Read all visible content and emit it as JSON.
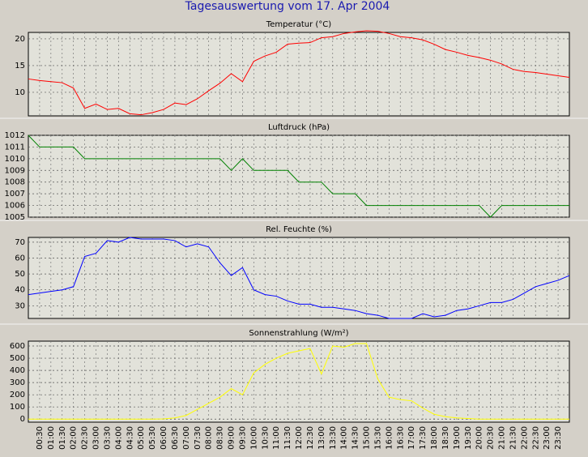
{
  "title": "Tagesauswertung vom 17. Apr 2004",
  "chart_data": [
    {
      "type": "line",
      "title": "Temperatur (°C)",
      "ylim": [
        5.6,
        21.2
      ],
      "yticks": [
        10,
        15,
        20
      ],
      "grid": true,
      "series": [
        {
          "name": null,
          "color": "#ff0000",
          "values": [
            12.5,
            12.2,
            12.0,
            11.8,
            10.8,
            7.0,
            7.8,
            6.8,
            7.0,
            6.0,
            5.8,
            6.2,
            6.8,
            8.0,
            7.7,
            8.8,
            10.3,
            11.7,
            13.5,
            12.0,
            15.8,
            16.8,
            17.5,
            19.0,
            19.2,
            19.3,
            20.2,
            20.4,
            21.0,
            21.3,
            21.5,
            21.4,
            21.0,
            20.4,
            20.2,
            19.8,
            19.0,
            18.0,
            17.5,
            16.9,
            16.5,
            16.0,
            15.3,
            14.3,
            13.9,
            13.7,
            13.4,
            13.1,
            12.8
          ]
        }
      ]
    },
    {
      "type": "line",
      "title": "Luftdruck (hPa)",
      "ylim": [
        1005,
        1012
      ],
      "yticks": [
        1005,
        1006,
        1007,
        1008,
        1009,
        1010,
        1011,
        1012
      ],
      "grid": true,
      "series": [
        {
          "name": null,
          "color": "#008000",
          "values": [
            1012,
            1011,
            1011,
            1011,
            1011,
            1010,
            1010,
            1010,
            1010,
            1010,
            1010,
            1010,
            1010,
            1010,
            1010,
            1010,
            1010,
            1010,
            1009,
            1010,
            1009,
            1009,
            1009,
            1009,
            1008,
            1008,
            1008,
            1007,
            1007,
            1007,
            1006,
            1006,
            1006,
            1006,
            1006,
            1006,
            1006,
            1006,
            1006,
            1006,
            1006,
            1005,
            1006,
            1006,
            1006,
            1006,
            1006,
            1006,
            1006
          ]
        }
      ]
    },
    {
      "type": "line",
      "title": "Rel. Feuchte (%)",
      "ylim": [
        22,
        73
      ],
      "yticks": [
        30,
        40,
        50,
        60,
        70
      ],
      "grid": true,
      "series": [
        {
          "name": null,
          "color": "#0000ff",
          "values": [
            37,
            38,
            39,
            40,
            42,
            61,
            63,
            71,
            70,
            73,
            72,
            72,
            72,
            71,
            67,
            69,
            67,
            57,
            49,
            54,
            40,
            37,
            36,
            33,
            31,
            31,
            29,
            29,
            28,
            27,
            25,
            24,
            22,
            22,
            22,
            25,
            23,
            24,
            27,
            28,
            30,
            32,
            32,
            34,
            38,
            42,
            44,
            46,
            49
          ]
        }
      ]
    },
    {
      "type": "line",
      "title": "Sonnenstrahlung (W/m²)",
      "ylim": [
        -25,
        640
      ],
      "yticks": [
        0,
        100,
        200,
        300,
        400,
        500,
        600
      ],
      "grid": true,
      "categories": [
        null,
        "00:30",
        "01:00",
        "01:30",
        "02:00",
        "02:30",
        "03:00",
        "03:30",
        "04:00",
        "04:30",
        "05:00",
        "05:30",
        "06:00",
        "06:30",
        "07:00",
        "07:30",
        "08:00",
        "08:30",
        "09:00",
        "09:30",
        "10:00",
        "10:30",
        "11:00",
        "11:30",
        "12:00",
        "12:30",
        "13:00",
        "13:30",
        "14:00",
        "14:30",
        "15:00",
        "15:30",
        "16:00",
        "16:30",
        "17:00",
        "17:30",
        "18:00",
        "18:30",
        "19:00",
        "19:30",
        "20:00",
        "20:30",
        "21:00",
        "21:30",
        "22:00",
        "22:30",
        "23:00",
        "23:30",
        null
      ],
      "series": [
        {
          "name": null,
          "color": "#ffff00",
          "values": [
            0,
            0,
            0,
            0,
            0,
            0,
            0,
            0,
            0,
            0,
            0,
            0,
            2,
            10,
            30,
            80,
            130,
            180,
            250,
            200,
            380,
            450,
            500,
            540,
            560,
            580,
            370,
            600,
            590,
            620,
            620,
            330,
            180,
            160,
            150,
            90,
            40,
            20,
            10,
            5,
            0,
            0,
            0,
            0,
            0,
            0,
            0,
            0,
            0
          ]
        }
      ]
    }
  ]
}
